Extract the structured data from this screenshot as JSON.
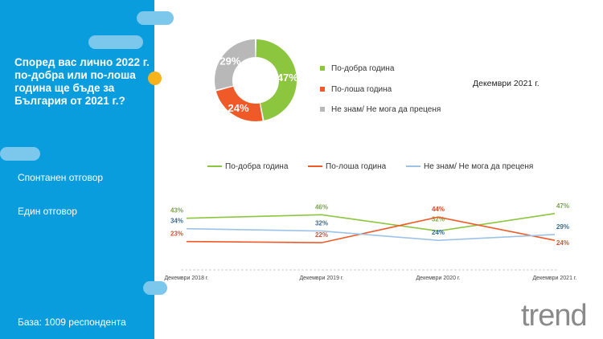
{
  "question": "Според вас лично 2022 г. по-добра или по-лоша година ще бъде за България от 2021 г.?",
  "notes": [
    "Спонтанен отговор",
    "Един отговор"
  ],
  "base": "База:  1009 респондента",
  "logo": "trend",
  "colors": {
    "green": "#8cc63f",
    "orange": "#f05a28",
    "gray": "#b8b8b8",
    "blue": "#9cc3e6",
    "panel": "#0a9ddd"
  },
  "chart_data": [
    {
      "type": "pie",
      "title": "Декември 2021 г.",
      "categories": [
        "По-добра година",
        "По-лоша година",
        "Не знам/ Не мога да преценя"
      ],
      "values": [
        47,
        24,
        29
      ],
      "labels": [
        "47%",
        "24%",
        "29%"
      ]
    },
    {
      "type": "line",
      "categories": [
        "Декември 2018 г.",
        "Декември 2019 г.",
        "Декември 2020 г.",
        "Декември 2021 г."
      ],
      "series": [
        {
          "name": "По-добра година",
          "values": [
            43,
            46,
            32,
            47
          ],
          "labels": [
            "43%",
            "46%",
            "32%",
            "47%"
          ]
        },
        {
          "name": "По-лоша година",
          "values": [
            23,
            22,
            44,
            24
          ],
          "labels": [
            "23%",
            "22%",
            "44%",
            "24%"
          ]
        },
        {
          "name": "Не знам/ Не мога да преценя",
          "values": [
            34,
            32,
            24,
            29
          ],
          "labels": [
            "34%",
            "32%",
            "24%",
            "29%"
          ]
        }
      ],
      "legend": "top"
    }
  ]
}
